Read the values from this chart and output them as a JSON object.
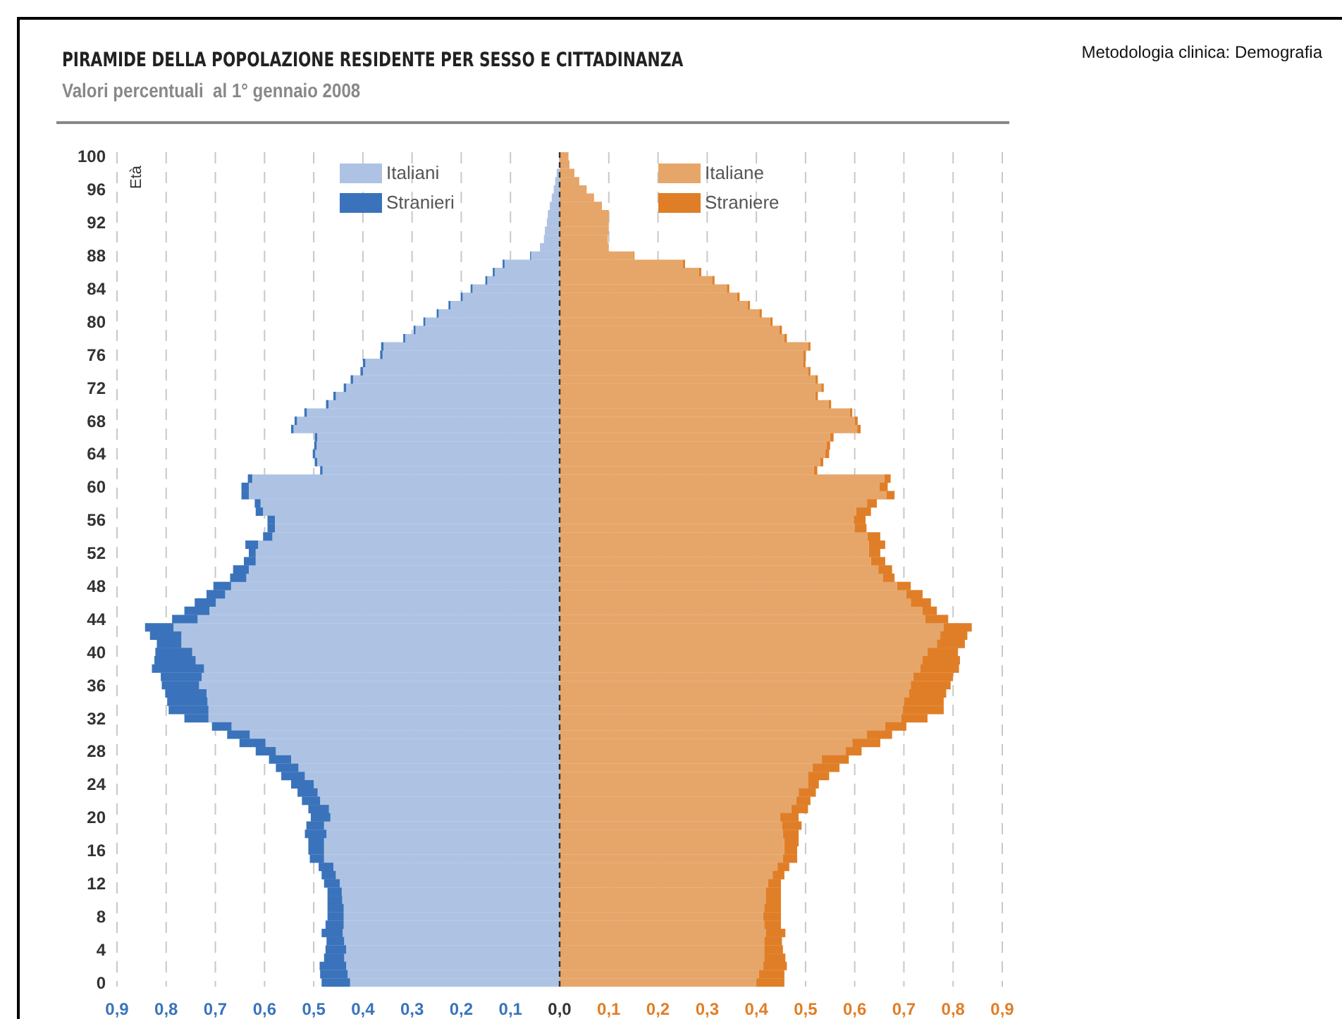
{
  "chart_data": {
    "type": "bar",
    "orientation": "horizontal",
    "stacked": true,
    "title": "PIRAMIDE DELLA POPOLAZIONE RESIDENTE PER SESSO E CITTADINANZA",
    "subtitle": "Valori percentuali  al 1° gennaio 2008",
    "ylabel": "Età",
    "annotations": [
      "Metodologia clinica: Demografia"
    ],
    "categories": [
      "100",
      null,
      null,
      null,
      "96",
      null,
      null,
      null,
      "92",
      null,
      null,
      null,
      "88",
      null,
      null,
      null,
      "84",
      null,
      null,
      null,
      "80",
      null,
      null,
      null,
      "76",
      null,
      null,
      null,
      "72",
      null,
      null,
      null,
      "68",
      null,
      null,
      null,
      "64",
      null,
      null,
      null,
      "60",
      null,
      null,
      null,
      "56",
      null,
      null,
      null,
      "52",
      null,
      null,
      null,
      "48",
      null,
      null,
      null,
      "44",
      null,
      null,
      null,
      "40",
      null,
      null,
      null,
      "36",
      null,
      null,
      null,
      "32",
      null,
      null,
      null,
      "28",
      null,
      null,
      null,
      "24",
      null,
      null,
      null,
      "20",
      null,
      null,
      null,
      "16",
      null,
      null,
      null,
      "12",
      null,
      null,
      null,
      "8",
      null,
      null,
      null,
      "4",
      null,
      null,
      null,
      "0"
    ],
    "series": [
      {
        "name": "Italiani",
        "color": "#aec3e4",
        "values": [
          null,
          null,
          -0.006,
          -0.009,
          -0.012,
          -0.016,
          -0.02,
          -0.024,
          -0.026,
          -0.03,
          -0.032,
          -0.04,
          -0.058,
          -0.112,
          -0.132,
          -0.147,
          -0.177,
          -0.197,
          -0.222,
          -0.246,
          -0.273,
          -0.293,
          -0.314,
          -0.358,
          -0.36,
          -0.395,
          -0.4,
          -0.42,
          -0.434,
          -0.455,
          -0.47,
          -0.514,
          -0.534,
          -0.541,
          -0.493,
          -0.494,
          -0.497,
          -0.493,
          -0.482,
          -0.625,
          -0.632,
          -0.632,
          -0.608,
          -0.603,
          -0.579,
          -0.579,
          -0.584,
          -0.613,
          -0.618,
          -0.618,
          -0.632,
          -0.637,
          -0.668,
          -0.68,
          -0.699,
          -0.712,
          -0.736,
          -0.785,
          -0.769,
          -0.769,
          -0.747,
          -0.74,
          -0.723,
          -0.728,
          -0.733,
          -0.718,
          -0.716,
          -0.714,
          -0.714,
          -0.667,
          -0.63,
          -0.598,
          -0.577,
          -0.546,
          -0.531,
          -0.518,
          -0.5,
          -0.492,
          -0.487,
          -0.469,
          -0.466,
          -0.479,
          -0.474,
          -0.479,
          -0.479,
          -0.479,
          -0.46,
          -0.455,
          -0.447,
          -0.443,
          -0.442,
          -0.439,
          -0.439,
          -0.439,
          -0.441,
          -0.438,
          -0.434,
          -0.438,
          -0.434,
          -0.431,
          -0.426
        ]
      },
      {
        "name": "Stranieri",
        "color": "#3a73bb",
        "values": [
          0,
          0,
          0,
          0,
          0,
          0,
          0,
          0,
          0,
          0,
          0,
          0,
          -0.002,
          -0.004,
          -0.004,
          -0.004,
          -0.004,
          -0.004,
          -0.004,
          -0.004,
          -0.004,
          -0.004,
          -0.004,
          -0.005,
          -0.005,
          -0.005,
          -0.005,
          -0.005,
          -0.005,
          -0.005,
          -0.005,
          -0.005,
          -0.005,
          -0.005,
          -0.005,
          -0.005,
          -0.005,
          -0.005,
          -0.005,
          -0.009,
          -0.015,
          -0.015,
          -0.012,
          -0.015,
          -0.015,
          -0.015,
          -0.019,
          -0.026,
          -0.014,
          -0.024,
          -0.032,
          -0.033,
          -0.036,
          -0.038,
          -0.043,
          -0.051,
          -0.052,
          -0.058,
          -0.064,
          -0.05,
          -0.075,
          -0.084,
          -0.106,
          -0.083,
          -0.076,
          -0.084,
          -0.082,
          -0.081,
          -0.049,
          -0.04,
          -0.046,
          -0.053,
          -0.041,
          -0.045,
          -0.046,
          -0.048,
          -0.046,
          -0.041,
          -0.037,
          -0.042,
          -0.04,
          -0.036,
          -0.044,
          -0.032,
          -0.032,
          -0.029,
          -0.03,
          -0.029,
          -0.032,
          -0.029,
          -0.03,
          -0.033,
          -0.033,
          -0.037,
          -0.043,
          -0.036,
          -0.042,
          -0.041,
          -0.054,
          -0.056,
          -0.058
        ]
      },
      {
        "name": "Italiane",
        "color": "#e6a66a",
        "values": [
          0.018,
          0.02,
          0.03,
          0.04,
          0.055,
          0.07,
          0.086,
          0.1,
          0.1,
          0.1,
          0.098,
          0.1,
          0.15,
          0.25,
          0.283,
          0.31,
          0.34,
          0.361,
          0.382,
          0.406,
          0.428,
          0.447,
          0.457,
          0.505,
          0.495,
          0.495,
          0.505,
          0.52,
          0.532,
          0.52,
          0.547,
          0.59,
          0.6,
          0.605,
          0.55,
          0.543,
          0.54,
          0.53,
          0.517,
          0.66,
          0.65,
          0.665,
          0.625,
          0.603,
          0.598,
          0.6,
          0.626,
          0.629,
          0.629,
          0.633,
          0.648,
          0.657,
          0.686,
          0.705,
          0.714,
          0.738,
          0.743,
          0.781,
          0.774,
          0.767,
          0.748,
          0.738,
          0.733,
          0.719,
          0.714,
          0.71,
          0.7,
          0.698,
          0.695,
          0.662,
          0.624,
          0.595,
          0.581,
          0.533,
          0.514,
          0.505,
          0.505,
          0.486,
          0.481,
          0.471,
          0.448,
          0.452,
          0.454,
          0.457,
          0.457,
          0.454,
          0.443,
          0.433,
          0.424,
          0.419,
          0.419,
          0.416,
          0.414,
          0.416,
          0.419,
          0.416,
          0.416,
          0.416,
          0.414,
          0.405,
          0.4
        ]
      },
      {
        "name": "Straniere",
        "color": "#e07e27",
        "values": [
          0,
          0,
          0,
          0,
          0,
          0,
          0,
          0,
          0,
          0,
          0,
          0,
          0.002,
          0.005,
          0.005,
          0.005,
          0.005,
          0.005,
          0.005,
          0.005,
          0.005,
          0.005,
          0.005,
          0.005,
          0.005,
          0.005,
          0.005,
          0.005,
          0.005,
          0.005,
          0.005,
          0.005,
          0.006,
          0.007,
          0.007,
          0.007,
          0.008,
          0.006,
          0.007,
          0.013,
          0.017,
          0.016,
          0.02,
          0.03,
          0.024,
          0.024,
          0.026,
          0.033,
          0.023,
          0.029,
          0.028,
          0.024,
          0.028,
          0.033,
          0.041,
          0.029,
          0.047,
          0.057,
          0.055,
          0.057,
          0.062,
          0.076,
          0.079,
          0.081,
          0.081,
          0.076,
          0.081,
          0.083,
          0.053,
          0.043,
          0.052,
          0.057,
          0.033,
          0.055,
          0.055,
          0.043,
          0.022,
          0.035,
          0.029,
          0.034,
          0.038,
          0.04,
          0.032,
          0.029,
          0.026,
          0.029,
          0.024,
          0.024,
          0.026,
          0.031,
          0.031,
          0.034,
          0.036,
          0.034,
          0.04,
          0.036,
          0.038,
          0.043,
          0.048,
          0.052,
          0.057
        ]
      }
    ],
    "xlim": [
      -0.9,
      0.9
    ],
    "xticks": [
      {
        "value": -0.9,
        "label": "0,9"
      },
      {
        "value": -0.8,
        "label": "0,8"
      },
      {
        "value": -0.7,
        "label": "0,7"
      },
      {
        "value": -0.6,
        "label": "0,6"
      },
      {
        "value": -0.5,
        "label": "0,5"
      },
      {
        "value": -0.4,
        "label": "0,4"
      },
      {
        "value": -0.3,
        "label": "0,3"
      },
      {
        "value": -0.2,
        "label": "0,2"
      },
      {
        "value": -0.1,
        "label": "0,1"
      },
      {
        "value": 0,
        "label": "0,0"
      },
      {
        "value": 0.1,
        "label": "0,1"
      },
      {
        "value": 0.2,
        "label": "0,2"
      },
      {
        "value": 0.3,
        "label": "0,3"
      },
      {
        "value": 0.4,
        "label": "0,4"
      },
      {
        "value": 0.5,
        "label": "0,5"
      },
      {
        "value": 0.6,
        "label": "0,6"
      },
      {
        "value": 0.7,
        "label": "0,7"
      },
      {
        "value": 0.8,
        "label": "0,8"
      },
      {
        "value": 0.9,
        "label": "0,9"
      }
    ],
    "ref_lines": [
      {
        "axis": "x",
        "value": 0,
        "color": "#333333",
        "line_style": "dashed"
      }
    ],
    "grid": "x",
    "legend": "top"
  }
}
